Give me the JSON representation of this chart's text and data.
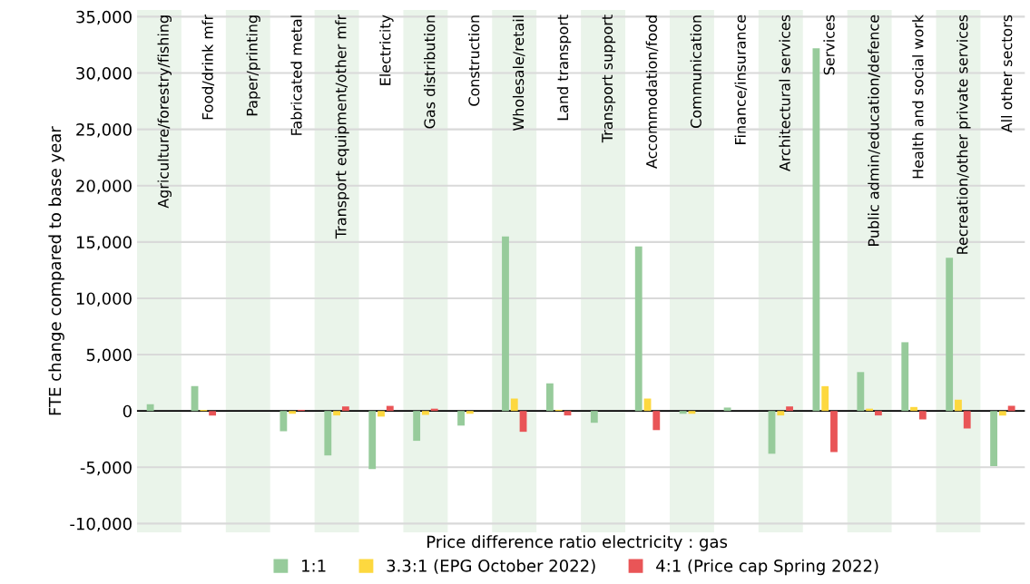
{
  "chart_data": {
    "type": "bar",
    "ylabel": "FTE change compared to base year",
    "legend_title": "Price difference ratio electricity : gas",
    "categories": [
      "Agriculture/forestry/fishing",
      "Food/drink mfr",
      "Paper/printing",
      "Fabricated metal",
      "Transport equipment/other mfr",
      "Electricity",
      "Gas distribution",
      "Construction",
      "Wholesale/retail",
      "Land transport",
      "Transport support",
      "Accommodation/food",
      "Communication",
      "Finance/insurance",
      "Architectural services",
      "Services",
      "Public admin/education/defence",
      "Health and social work",
      "Recreation/other private services",
      "All other sectors"
    ],
    "series": [
      {
        "name": "1:1",
        "color": "#97cb9b",
        "values": [
          600,
          2200,
          0,
          -1800,
          -3950,
          -5150,
          -2650,
          -1300,
          15500,
          2450,
          -1050,
          14600,
          -250,
          300,
          -3800,
          32200,
          3450,
          6100,
          13600,
          -4900
        ]
      },
      {
        "name": "3.3:1 (EPG October 2022)",
        "color": "#fdd83f",
        "values": [
          0,
          100,
          0,
          -250,
          -400,
          -500,
          -350,
          -250,
          1100,
          100,
          0,
          1100,
          -250,
          0,
          -400,
          2200,
          200,
          350,
          1000,
          -400
        ]
      },
      {
        "name": "4:1 (Price cap Spring 2022)",
        "color": "#e95557",
        "values": [
          0,
          -400,
          0,
          100,
          400,
          450,
          200,
          0,
          -1850,
          -400,
          0,
          -1700,
          0,
          0,
          400,
          -3650,
          -400,
          -750,
          -1550,
          450
        ]
      }
    ],
    "ylim": [
      -10800,
      35600
    ],
    "yticks": [
      {
        "value": -10000,
        "label": "-10,000"
      },
      {
        "value": -5000,
        "label": "-5,000"
      },
      {
        "value": 0,
        "label": "0"
      },
      {
        "value": 5000,
        "label": "5,000"
      },
      {
        "value": 10000,
        "label": "10,000"
      },
      {
        "value": 15000,
        "label": "15,000"
      },
      {
        "value": 20000,
        "label": "20,000"
      },
      {
        "value": 25000,
        "label": "25,000"
      },
      {
        "value": 30000,
        "label": "30,000"
      },
      {
        "value": 35000,
        "label": "35,000"
      }
    ],
    "bands": [
      {
        "axis": "x",
        "from": "Agriculture/forestry/fishing",
        "to": "Agriculture/forestry/fishing",
        "color": "#eaf4ea"
      },
      {
        "axis": "x",
        "from": "Paper/printing",
        "to": "Paper/printing",
        "color": "#eaf4ea"
      },
      {
        "axis": "x",
        "from": "Transport equipment/other mfr",
        "to": "Transport equipment/other mfr",
        "color": "#eaf4ea"
      },
      {
        "axis": "x",
        "from": "Gas distribution",
        "to": "Gas distribution",
        "color": "#eaf4ea"
      },
      {
        "axis": "x",
        "from": "Wholesale/retail",
        "to": "Wholesale/retail",
        "color": "#eaf4ea"
      },
      {
        "axis": "x",
        "from": "Transport support",
        "to": "Transport support",
        "color": "#eaf4ea"
      },
      {
        "axis": "x",
        "from": "Communication",
        "to": "Communication",
        "color": "#eaf4ea"
      },
      {
        "axis": "x",
        "from": "Architectural services",
        "to": "Architectural services",
        "color": "#eaf4ea"
      },
      {
        "axis": "x",
        "from": "Public admin/education/defence",
        "to": "Public admin/education/defence",
        "color": "#eaf4ea"
      },
      {
        "axis": "x",
        "from": "Recreation/other private services",
        "to": "Recreation/other private services",
        "color": "#eaf4ea"
      }
    ],
    "grid": "y",
    "legend": "bottom"
  }
}
